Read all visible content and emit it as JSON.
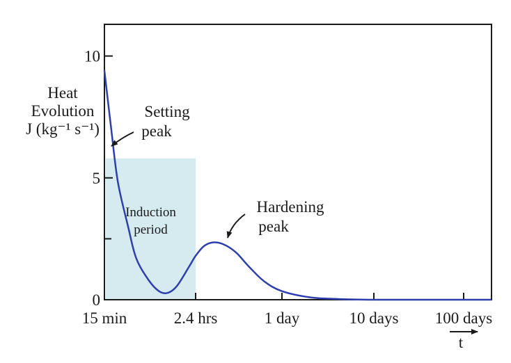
{
  "chart_data": {
    "type": "line",
    "title": "",
    "ylabel": [
      "Heat",
      "Evolution",
      "J (kg⁻¹ s⁻¹)"
    ],
    "xlabel": "t",
    "x_scale": "log",
    "x_ticks": [
      "15 min",
      "2.4 hrs",
      "1 day",
      "10 days",
      "100 days"
    ],
    "y_ticks": [
      "10",
      "5",
      "0"
    ],
    "y_minor_ticks": [
      2.5
    ],
    "ylim": [
      0,
      11.3
    ],
    "grid": false,
    "series": [
      {
        "name": "",
        "color": "#2d3fae",
        "points": [
          {
            "x": "15 min",
            "y": 9.4
          },
          {
            "x": "18 min",
            "y": 6.8
          },
          {
            "x": "21 min",
            "y": 4.8
          },
          {
            "x": "27 min",
            "y": 3.0
          },
          {
            "x": "33 min",
            "y": 1.7
          },
          {
            "x": "45 min",
            "y": 0.8
          },
          {
            "x": "58 min",
            "y": 0.35
          },
          {
            "x": "1.2 hrs",
            "y": 0.28
          },
          {
            "x": "1.5 hrs",
            "y": 0.55
          },
          {
            "x": "2 hrs",
            "y": 1.3
          },
          {
            "x": "2.4 hrs",
            "y": 1.8
          },
          {
            "x": "3 hrs",
            "y": 2.2
          },
          {
            "x": "3.8 hrs",
            "y": 2.35
          },
          {
            "x": "5 hrs",
            "y": 2.28
          },
          {
            "x": "7 hrs",
            "y": 1.95
          },
          {
            "x": "10 hrs",
            "y": 1.35
          },
          {
            "x": "15 hrs",
            "y": 0.75
          },
          {
            "x": "1 day",
            "y": 0.35
          },
          {
            "x": "2 days",
            "y": 0.1
          },
          {
            "x": "4 days",
            "y": 0.03
          },
          {
            "x": "10 days",
            "y": 0.0
          },
          {
            "x": "100 days",
            "y": 0.0
          },
          {
            "x": "200 days",
            "y": 0.0
          }
        ]
      }
    ],
    "regions": [
      {
        "label": [
          "Induction",
          "period"
        ],
        "x_start": "15 min",
        "x_end": "2.4 hrs",
        "y_top": 5.8,
        "color": "#d6ebf0"
      }
    ],
    "annotations": [
      {
        "text": [
          "Setting",
          "peak"
        ]
      },
      {
        "text": [
          "Hardening",
          "peak"
        ]
      }
    ]
  }
}
